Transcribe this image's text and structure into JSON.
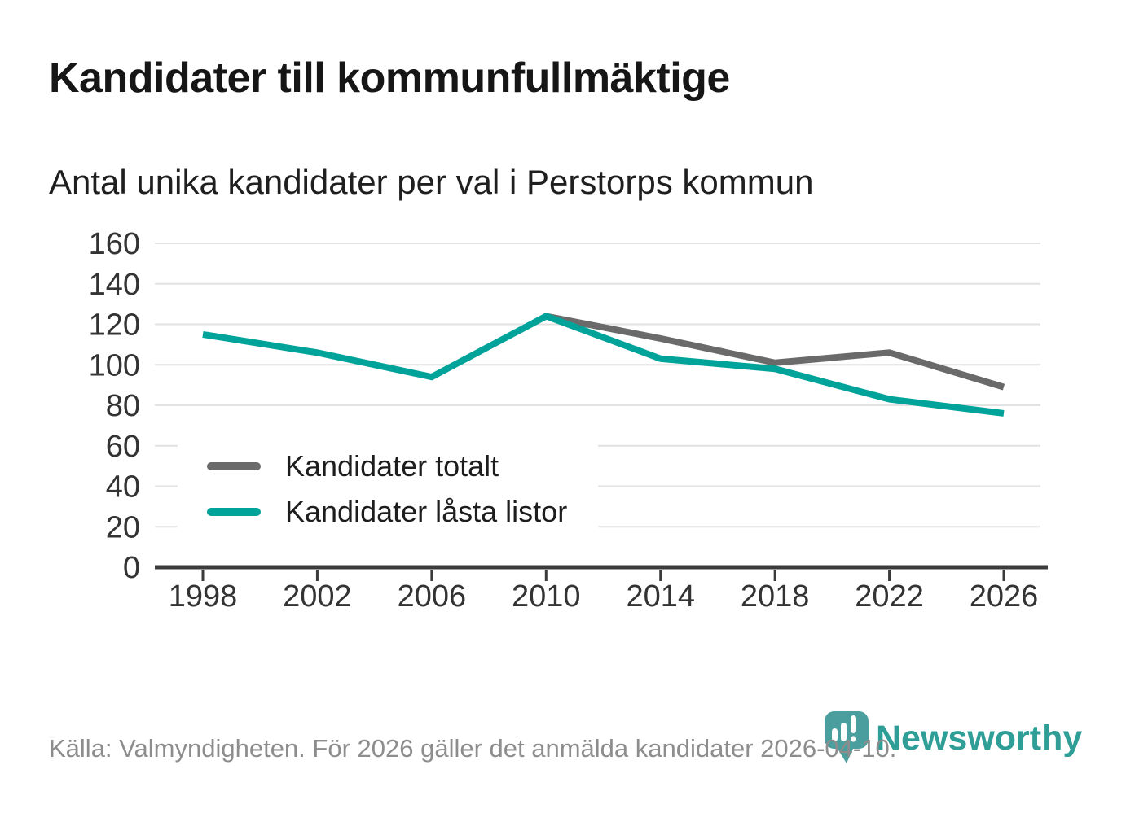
{
  "page": {
    "title": "Kandidater till kommunfullmäktige",
    "subtitle": "Antal unika kandidater per val i Perstorps kommun",
    "source": "Källa: Valmyndigheten. För 2026 gäller det anmälda kandidater 2026-04-10.",
    "brand": {
      "name": "Newsworthy",
      "wordmark_color": "#2f9e97",
      "pin_color": "#4a9e9d"
    }
  },
  "chart_data": {
    "type": "line",
    "title": "Kandidater till kommunfullmäktige",
    "subtitle": "Antal unika kandidater per val i Perstorps kommun",
    "categories": [
      1998,
      2002,
      2006,
      2010,
      2014,
      2018,
      2022,
      2026
    ],
    "series": [
      {
        "name": "Kandidater totalt",
        "color": "#6a6a6a",
        "values": [
          null,
          null,
          null,
          124,
          113,
          101,
          106,
          89
        ]
      },
      {
        "name": "Kandidater låsta listor",
        "color": "#00a39a",
        "values": [
          115,
          106,
          94,
          124,
          103,
          98,
          83,
          76
        ]
      }
    ],
    "ylim": [
      0,
      160
    ],
    "yticks": [
      0,
      20,
      40,
      60,
      80,
      100,
      120,
      140,
      160
    ],
    "grid": "horizontal",
    "legend_position": "inside-bottom-left",
    "xlabel": "",
    "ylabel": "",
    "colors": {
      "gridline": "#e2e2e2",
      "axis": "#3b3b3b",
      "tick_label": "#333333"
    }
  }
}
